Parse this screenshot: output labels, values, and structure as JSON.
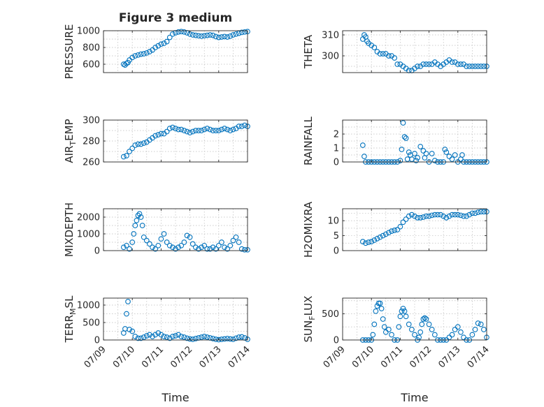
{
  "figure": {
    "title": "Figure 3 medium",
    "accent_color": "#0072BD"
  },
  "chart_data": [
    {
      "type": "scatter",
      "id": "pressure",
      "ylabel": "PRESSURE",
      "ylim": [
        500,
        1000
      ],
      "yticks": [
        600,
        800,
        1000
      ],
      "xlim": [
        0,
        5
      ],
      "xticks": [],
      "xlabel": "",
      "grid": true,
      "series": [
        {
          "x": [
            0.7,
            0.75,
            0.8,
            0.85,
            0.9,
            1.0,
            1.1,
            1.2,
            1.3,
            1.4,
            1.5,
            1.6,
            1.7,
            1.8,
            1.9,
            2.0,
            2.1,
            2.2,
            2.3,
            2.4,
            2.5,
            2.6,
            2.7,
            2.8,
            2.9,
            3.0,
            3.1,
            3.2,
            3.3,
            3.4,
            3.5,
            3.6,
            3.7,
            3.8,
            3.9,
            4.0,
            4.1,
            4.2,
            4.3,
            4.4,
            4.5,
            4.6,
            4.7,
            4.8,
            4.9,
            5.0
          ],
          "y": [
            600,
            590,
            610,
            620,
            650,
            680,
            700,
            710,
            720,
            725,
            735,
            750,
            770,
            800,
            820,
            840,
            850,
            870,
            920,
            960,
            975,
            985,
            990,
            985,
            975,
            960,
            950,
            945,
            940,
            935,
            940,
            945,
            950,
            945,
            930,
            920,
            925,
            930,
            925,
            935,
            950,
            960,
            970,
            980,
            985,
            990
          ]
        }
      ]
    },
    {
      "type": "scatter",
      "id": "theta",
      "ylabel": "THETA",
      "ylim": [
        292,
        312
      ],
      "yticks": [
        300,
        310
      ],
      "xlim": [
        0,
        5
      ],
      "xticks": [],
      "xlabel": "",
      "grid": true,
      "series": [
        {
          "x": [
            0.7,
            0.75,
            0.8,
            0.85,
            0.9,
            1.0,
            1.1,
            1.2,
            1.3,
            1.4,
            1.5,
            1.6,
            1.7,
            1.8,
            1.9,
            2.0,
            2.1,
            2.2,
            2.3,
            2.4,
            2.5,
            2.6,
            2.7,
            2.8,
            2.9,
            3.0,
            3.1,
            3.2,
            3.3,
            3.4,
            3.5,
            3.6,
            3.7,
            3.8,
            3.9,
            4.0,
            4.1,
            4.2,
            4.3,
            4.4,
            4.5,
            4.6,
            4.7,
            4.8,
            4.9,
            5.0
          ],
          "y": [
            308,
            310,
            309,
            307,
            306,
            305,
            304,
            302,
            301,
            301,
            301,
            300,
            300,
            299,
            296,
            296,
            295,
            294,
            293,
            293,
            294,
            295,
            295,
            296,
            296,
            296,
            296,
            297,
            296,
            295,
            296,
            297,
            298,
            297,
            297,
            296,
            296,
            296,
            295,
            295,
            295,
            295,
            295,
            295,
            295,
            295
          ]
        }
      ]
    },
    {
      "type": "scatter",
      "id": "air_temp",
      "ylabel": "AIR_TEMP",
      "ylim": [
        260,
        300
      ],
      "yticks": [
        260,
        280,
        300
      ],
      "xlim": [
        0,
        5
      ],
      "xticks": [],
      "xlabel": "",
      "grid": true,
      "series": [
        {
          "x": [
            0.7,
            0.8,
            0.9,
            1.0,
            1.1,
            1.2,
            1.3,
            1.4,
            1.5,
            1.6,
            1.7,
            1.8,
            1.9,
            2.0,
            2.1,
            2.2,
            2.3,
            2.4,
            2.5,
            2.6,
            2.7,
            2.8,
            2.9,
            3.0,
            3.1,
            3.2,
            3.3,
            3.4,
            3.5,
            3.6,
            3.7,
            3.8,
            3.9,
            4.0,
            4.1,
            4.2,
            4.3,
            4.4,
            4.5,
            4.6,
            4.7,
            4.8,
            4.9,
            5.0
          ],
          "y": [
            265,
            266,
            270,
            273,
            276,
            277,
            277,
            278,
            279,
            281,
            283,
            285,
            286,
            287,
            287,
            289,
            292,
            293,
            292,
            291,
            291,
            290,
            289,
            288,
            289,
            290,
            290,
            290,
            291,
            292,
            291,
            290,
            290,
            290,
            291,
            292,
            291,
            290,
            291,
            292,
            294,
            294,
            295,
            294
          ]
        }
      ]
    },
    {
      "type": "scatter",
      "id": "rainfall",
      "ylabel": "RAINFALL",
      "ylim": [
        0,
        3
      ],
      "yticks": [
        0,
        1,
        2
      ],
      "xlim": [
        0,
        5
      ],
      "xticks": [],
      "xlabel": "",
      "grid": true,
      "series": [
        {
          "x": [
            0.7,
            0.75,
            0.8,
            0.9,
            1.0,
            1.1,
            1.2,
            1.3,
            1.4,
            1.5,
            1.6,
            1.7,
            1.8,
            1.9,
            2.0,
            2.05,
            2.1,
            2.15,
            2.2,
            2.25,
            2.3,
            2.35,
            2.4,
            2.5,
            2.55,
            2.6,
            2.7,
            2.8,
            2.85,
            2.9,
            3.0,
            3.1,
            3.2,
            3.3,
            3.4,
            3.5,
            3.55,
            3.6,
            3.7,
            3.8,
            3.9,
            4.0,
            4.1,
            4.15,
            4.2,
            4.3,
            4.4,
            4.5,
            4.6,
            4.7,
            4.8,
            4.9,
            5.0
          ],
          "y": [
            1.2,
            0.4,
            0,
            0,
            0,
            0,
            0,
            0,
            0,
            0,
            0,
            0,
            0,
            0,
            0.1,
            0.9,
            2.8,
            1.8,
            1.7,
            0.2,
            0.7,
            0.5,
            0.2,
            0.6,
            0.1,
            0.3,
            1.1,
            0.8,
            0.3,
            0.6,
            0,
            0.6,
            0.1,
            0,
            0,
            0,
            0.9,
            0.7,
            0.4,
            0.2,
            0.5,
            0,
            0.2,
            0.5,
            0,
            0,
            0,
            0,
            0,
            0,
            0,
            0,
            0
          ]
        }
      ]
    },
    {
      "type": "scatter",
      "id": "mixdepth",
      "ylabel": "MIXDEPTH",
      "ylim": [
        0,
        2500
      ],
      "yticks": [
        0,
        1000,
        2000
      ],
      "xlim": [
        0,
        5
      ],
      "xticks": [],
      "xlabel": "",
      "grid": true,
      "series": [
        {
          "x": [
            0.7,
            0.8,
            0.9,
            1.0,
            1.05,
            1.1,
            1.15,
            1.2,
            1.25,
            1.3,
            1.35,
            1.4,
            1.5,
            1.6,
            1.7,
            1.8,
            1.9,
            2.0,
            2.1,
            2.2,
            2.3,
            2.4,
            2.5,
            2.6,
            2.7,
            2.8,
            2.9,
            3.0,
            3.1,
            3.2,
            3.3,
            3.4,
            3.5,
            3.6,
            3.7,
            3.8,
            3.9,
            4.0,
            4.1,
            4.2,
            4.3,
            4.4,
            4.5,
            4.6,
            4.7,
            4.8,
            4.9,
            5.0
          ],
          "y": [
            200,
            300,
            100,
            500,
            1000,
            1500,
            1800,
            2100,
            2200,
            2000,
            1500,
            800,
            600,
            400,
            200,
            100,
            300,
            700,
            1000,
            500,
            300,
            200,
            100,
            200,
            300,
            500,
            900,
            800,
            400,
            200,
            100,
            200,
            300,
            100,
            100,
            200,
            100,
            300,
            500,
            200,
            100,
            300,
            600,
            800,
            500,
            100,
            50,
            50
          ]
        }
      ]
    },
    {
      "type": "scatter",
      "id": "h2omixra",
      "ylabel": "H2OMIXRA",
      "ylim": [
        0,
        14
      ],
      "yticks": [
        0,
        5,
        10
      ],
      "xlim": [
        0,
        5
      ],
      "xticks": [],
      "xlabel": "",
      "grid": true,
      "series": [
        {
          "x": [
            0.7,
            0.8,
            0.9,
            1.0,
            1.1,
            1.2,
            1.3,
            1.4,
            1.5,
            1.6,
            1.7,
            1.8,
            1.9,
            2.0,
            2.1,
            2.2,
            2.3,
            2.4,
            2.5,
            2.6,
            2.7,
            2.8,
            2.9,
            3.0,
            3.1,
            3.2,
            3.3,
            3.4,
            3.5,
            3.6,
            3.7,
            3.8,
            3.9,
            4.0,
            4.1,
            4.2,
            4.3,
            4.4,
            4.5,
            4.6,
            4.7,
            4.8,
            4.9,
            5.0
          ],
          "y": [
            3,
            2.5,
            2.8,
            3,
            3.5,
            4,
            4.5,
            5,
            5.5,
            6,
            6.5,
            6.8,
            7,
            8,
            9.5,
            10.5,
            11.5,
            12,
            11.5,
            11,
            11,
            11.2,
            11.5,
            11.5,
            11.8,
            12,
            12,
            12,
            11.5,
            11,
            11.5,
            12,
            12,
            12,
            11.8,
            11.5,
            11.5,
            12,
            12.5,
            12.5,
            12.8,
            13,
            13,
            13
          ]
        }
      ]
    },
    {
      "type": "scatter",
      "id": "terr_msl",
      "ylabel": "TERR_MSL",
      "ylim": [
        0,
        1200
      ],
      "yticks": [
        0,
        500,
        1000
      ],
      "xlim": [
        0,
        5
      ],
      "xticks": [],
      "xlabel": "",
      "grid": true,
      "series": [
        {
          "x": [
            0.7,
            0.75,
            0.8,
            0.85,
            0.9,
            1.0,
            1.1,
            1.2,
            1.3,
            1.4,
            1.5,
            1.6,
            1.7,
            1.8,
            1.9,
            2.0,
            2.1,
            2.2,
            2.3,
            2.4,
            2.5,
            2.6,
            2.7,
            2.8,
            2.9,
            3.0,
            3.1,
            3.2,
            3.3,
            3.4,
            3.5,
            3.6,
            3.7,
            3.8,
            3.9,
            4.0,
            4.1,
            4.2,
            4.3,
            4.4,
            4.5,
            4.6,
            4.7,
            4.8,
            4.9,
            5.0
          ],
          "y": [
            200,
            320,
            750,
            1100,
            300,
            250,
            100,
            50,
            50,
            80,
            120,
            150,
            100,
            150,
            200,
            150,
            100,
            80,
            50,
            100,
            120,
            150,
            100,
            80,
            50,
            30,
            20,
            40,
            60,
            80,
            100,
            80,
            60,
            40,
            20,
            10,
            20,
            30,
            40,
            30,
            20,
            50,
            80,
            90,
            60,
            20
          ]
        }
      ]
    },
    {
      "type": "scatter",
      "id": "sunflux",
      "ylabel": "SUN_FLUX",
      "ylim": [
        0,
        800
      ],
      "yticks": [
        0,
        500
      ],
      "xlim": [
        0,
        5
      ],
      "xticks": [],
      "xlabel": "",
      "grid": true,
      "series": [
        {
          "x": [
            0.7,
            0.8,
            0.9,
            1.0,
            1.05,
            1.1,
            1.15,
            1.2,
            1.25,
            1.3,
            1.35,
            1.4,
            1.45,
            1.5,
            1.6,
            1.7,
            1.8,
            1.9,
            1.95,
            2.0,
            2.05,
            2.1,
            2.15,
            2.2,
            2.3,
            2.4,
            2.5,
            2.6,
            2.65,
            2.7,
            2.75,
            2.8,
            2.85,
            2.9,
            3.0,
            3.1,
            3.2,
            3.3,
            3.4,
            3.5,
            3.6,
            3.7,
            3.8,
            3.9,
            4.0,
            4.1,
            4.2,
            4.3,
            4.4,
            4.5,
            4.6,
            4.7,
            4.8,
            4.9,
            5.0
          ],
          "y": [
            0,
            0,
            0,
            0,
            100,
            300,
            550,
            650,
            700,
            700,
            600,
            400,
            250,
            150,
            200,
            100,
            0,
            0,
            250,
            450,
            550,
            600,
            550,
            450,
            300,
            200,
            100,
            0,
            50,
            150,
            300,
            400,
            420,
            400,
            300,
            200,
            100,
            0,
            0,
            0,
            0,
            50,
            100,
            200,
            250,
            150,
            50,
            0,
            0,
            100,
            200,
            320,
            300,
            200,
            50
          ]
        }
      ]
    }
  ],
  "shared_x": {
    "xlabel": "Time",
    "ticks": [
      0,
      1,
      2,
      3,
      4,
      5
    ],
    "tick_labels": [
      "07/09",
      "07/10",
      "07/11",
      "07/12",
      "07/13",
      "07/14"
    ]
  }
}
